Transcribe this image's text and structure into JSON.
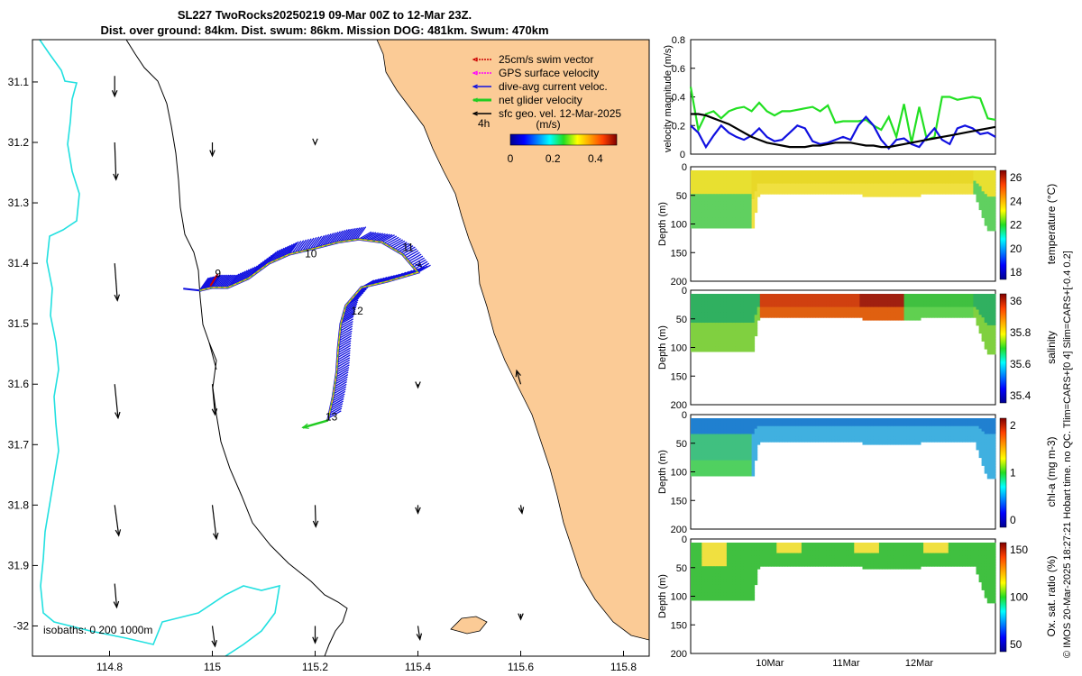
{
  "header": {
    "line1": "SL227 TwoRocks20250219 09-Mar 00Z to 12-Mar 23Z.",
    "line2": "Dist. over ground: 84km. Dist. swum: 86km. Mission DOG: 481km. Swum: 470km"
  },
  "side_label": "© IMOS 20-Mar-2025 18:27:21 Hobart time. no QC. Tlim=CARS+[0 4] Slim=CARS+[-0.4 0.2]",
  "colors": {
    "land": "#fbcb96",
    "isobath_0": "#000000",
    "isobath_200": "#000000",
    "isobath_1000": "#22e0e0",
    "track_current": "#1010e0",
    "swim": "#cc0000",
    "gps": "#ff00ff",
    "net": "#22cc22"
  },
  "chart_data": [
    {
      "type": "map",
      "xlim": [
        114.65,
        115.85
      ],
      "ylim": [
        -32.05,
        -31.03
      ],
      "x_ticks": [
        114.8,
        115,
        115.2,
        115.4,
        115.6,
        115.8
      ],
      "y_ticks": [
        -31.1,
        -31.2,
        -31.3,
        -31.4,
        -31.5,
        -31.6,
        -31.7,
        -31.8,
        -31.9,
        -32
      ],
      "y_tick_labels": [
        "31.1",
        "31.2",
        "31.3",
        "31.4",
        "31.5",
        "31.6",
        "31.7",
        "31.8",
        "31.9",
        "-32"
      ],
      "legend": [
        "25cm/s swim vector",
        "GPS surface velocity",
        "dive-avg current veloc.",
        "net glider velocity",
        "sfc geo. vel. 12-Mar-2025"
      ],
      "legend_time": "4h",
      "colorbar": {
        "label": "(m/s)",
        "ticks": [
          "0",
          "0.2",
          "0.4"
        ],
        "range": [
          0,
          0.5
        ]
      },
      "isobath_text": "isobaths: 0   200  1000m",
      "day_labels": [
        {
          "text": "9",
          "lon": 115.005,
          "lat": -31.423
        },
        {
          "text": "10",
          "lon": 115.18,
          "lat": -31.39
        },
        {
          "text": "11",
          "lon": 115.37,
          "lat": -31.38
        },
        {
          "text": "12",
          "lon": 115.27,
          "lat": -31.485
        },
        {
          "text": "13",
          "lon": 115.22,
          "lat": -31.66
        }
      ],
      "track": [
        [
          114.975,
          -31.445
        ],
        [
          115.0,
          -31.44
        ],
        [
          115.03,
          -31.44
        ],
        [
          115.07,
          -31.425
        ],
        [
          115.11,
          -31.4
        ],
        [
          115.15,
          -31.385
        ],
        [
          115.2,
          -31.375
        ],
        [
          115.245,
          -31.365
        ],
        [
          115.285,
          -31.36
        ],
        [
          115.33,
          -31.365
        ],
        [
          115.37,
          -31.385
        ],
        [
          115.4,
          -31.415
        ],
        [
          115.34,
          -31.43
        ],
        [
          115.29,
          -31.44
        ],
        [
          115.26,
          -31.47
        ],
        [
          115.25,
          -31.5
        ],
        [
          115.245,
          -31.54
        ],
        [
          115.242,
          -31.58
        ],
        [
          115.235,
          -31.62
        ],
        [
          115.225,
          -31.66
        ]
      ],
      "geo_vectors": [
        {
          "lon": 114.81,
          "lat": -31.09,
          "u": 0.0,
          "v": -0.3
        },
        {
          "lon": 114.81,
          "lat": -31.2,
          "u": 0.02,
          "v": -0.55
        },
        {
          "lon": 114.81,
          "lat": -31.4,
          "u": 0.04,
          "v": -0.55
        },
        {
          "lon": 114.81,
          "lat": -31.6,
          "u": 0.05,
          "v": -0.5
        },
        {
          "lon": 114.81,
          "lat": -31.8,
          "u": 0.06,
          "v": -0.45
        },
        {
          "lon": 114.81,
          "lat": -31.93,
          "u": 0.03,
          "v": -0.35
        },
        {
          "lon": 115.0,
          "lat": -31.2,
          "u": 0.0,
          "v": -0.2
        },
        {
          "lon": 115.0,
          "lat": -31.6,
          "u": 0.04,
          "v": -0.45
        },
        {
          "lon": 115.0,
          "lat": -31.8,
          "u": 0.06,
          "v": -0.5
        },
        {
          "lon": 115.0,
          "lat": -32.0,
          "u": 0.04,
          "v": -0.3
        },
        {
          "lon": 115.2,
          "lat": -31.2,
          "u": 0.0,
          "v": -0.03
        },
        {
          "lon": 115.2,
          "lat": -31.8,
          "u": 0.01,
          "v": -0.32
        },
        {
          "lon": 115.2,
          "lat": -32.0,
          "u": 0.0,
          "v": -0.25
        },
        {
          "lon": 115.4,
          "lat": -31.4,
          "u": 0.05,
          "v": -0.05
        },
        {
          "lon": 115.4,
          "lat": -31.6,
          "u": 0.0,
          "v": -0.05
        },
        {
          "lon": 115.4,
          "lat": -31.8,
          "u": 0.0,
          "v": -0.12
        },
        {
          "lon": 115.4,
          "lat": -32.0,
          "u": 0.03,
          "v": -0.2
        },
        {
          "lon": 115.6,
          "lat": -31.6,
          "u": -0.06,
          "v": 0.2
        },
        {
          "lon": 115.6,
          "lat": -31.8,
          "u": 0.02,
          "v": -0.12
        },
        {
          "lon": 115.6,
          "lat": -31.98,
          "u": 0.0,
          "v": -0.08
        }
      ]
    },
    {
      "type": "line",
      "ylabel": "velocity magnitude (m/s)",
      "ylim": [
        0,
        0.8
      ],
      "y_ticks": [
        "0",
        "0.2",
        "0.4",
        "0.6",
        "0.8"
      ],
      "x": [
        0,
        0.1,
        0.2,
        0.3,
        0.4,
        0.5,
        0.6,
        0.7,
        0.8,
        0.9,
        1.0,
        1.1,
        1.2,
        1.3,
        1.4,
        1.5,
        1.6,
        1.7,
        1.8,
        1.9,
        2.0,
        2.1,
        2.2,
        2.3,
        2.4,
        2.5,
        2.6,
        2.7,
        2.8,
        2.9,
        3.0,
        3.1,
        3.2,
        3.3,
        3.4,
        3.5,
        3.6,
        3.7,
        3.8,
        3.9,
        4.0
      ],
      "series": [
        {
          "name": "net glider velocity",
          "color": "#22e022",
          "values": [
            0.47,
            0.17,
            0.28,
            0.3,
            0.25,
            0.3,
            0.32,
            0.33,
            0.3,
            0.36,
            0.3,
            0.27,
            0.3,
            0.3,
            0.31,
            0.32,
            0.33,
            0.3,
            0.34,
            0.22,
            0.23,
            0.23,
            0.23,
            0.24,
            0.2,
            0.17,
            0.26,
            0.12,
            0.35,
            0.08,
            0.33,
            0.1,
            0.12,
            0.4,
            0.4,
            0.38,
            0.39,
            0.4,
            0.39,
            0.25,
            0.24
          ]
        },
        {
          "name": "dive-avg current",
          "color": "#1010e0",
          "values": [
            0.2,
            0.15,
            0.05,
            0.13,
            0.2,
            0.15,
            0.12,
            0.1,
            0.13,
            0.18,
            0.12,
            0.09,
            0.1,
            0.15,
            0.2,
            0.18,
            0.09,
            0.07,
            0.08,
            0.1,
            0.12,
            0.1,
            0.2,
            0.26,
            0.2,
            0.1,
            0.04,
            0.1,
            0.11,
            0.07,
            0.05,
            0.12,
            0.18,
            0.1,
            0.07,
            0.18,
            0.2,
            0.18,
            0.14,
            0.15,
            0.12
          ]
        },
        {
          "name": "sfc geo. vel.",
          "color": "#000000",
          "values": [
            0.28,
            0.28,
            0.27,
            0.25,
            0.23,
            0.21,
            0.18,
            0.15,
            0.12,
            0.1,
            0.08,
            0.07,
            0.06,
            0.05,
            0.05,
            0.05,
            0.06,
            0.06,
            0.07,
            0.08,
            0.08,
            0.08,
            0.07,
            0.06,
            0.06,
            0.05,
            0.05,
            0.06,
            0.07,
            0.08,
            0.09,
            0.1,
            0.11,
            0.12,
            0.13,
            0.14,
            0.15,
            0.16,
            0.17,
            0.18,
            0.19
          ]
        }
      ]
    },
    {
      "type": "heatmap",
      "name": "temperature",
      "cbar_label": "temperature (°C)",
      "cbar_ticks": [
        "26",
        "24",
        "22",
        "20",
        "18"
      ],
      "ylabel": "Depth (m)",
      "y_ticks": [
        "0",
        "50",
        "100",
        "150",
        "200"
      ],
      "ylim": [
        200,
        0
      ]
    },
    {
      "type": "heatmap",
      "name": "salinity",
      "cbar_label": "salinity",
      "cbar_ticks": [
        "36",
        "35.8",
        "35.6",
        "35.4"
      ],
      "ylabel": "Depth (m)",
      "y_ticks": [
        "0",
        "50",
        "100",
        "150",
        "200"
      ],
      "ylim": [
        200,
        0
      ]
    },
    {
      "type": "heatmap",
      "name": "chl-a",
      "cbar_label": "chl-a (mg m-3)",
      "cbar_ticks": [
        "2",
        "1",
        "0"
      ],
      "ylabel": "Depth (m)",
      "y_ticks": [
        "0",
        "50",
        "100",
        "150",
        "200"
      ],
      "ylim": [
        200,
        0
      ]
    },
    {
      "type": "heatmap",
      "name": "oxygen",
      "cbar_label": "Ox. sat. ratio (%)",
      "cbar_ticks": [
        "150",
        "100",
        "50"
      ],
      "ylabel": "Depth (m)",
      "y_ticks": [
        "0",
        "50",
        "100",
        "150",
        "200"
      ],
      "ylim": [
        200,
        0
      ],
      "x_ticks": [
        "10Mar",
        "11Mar",
        "12Mar"
      ]
    }
  ]
}
